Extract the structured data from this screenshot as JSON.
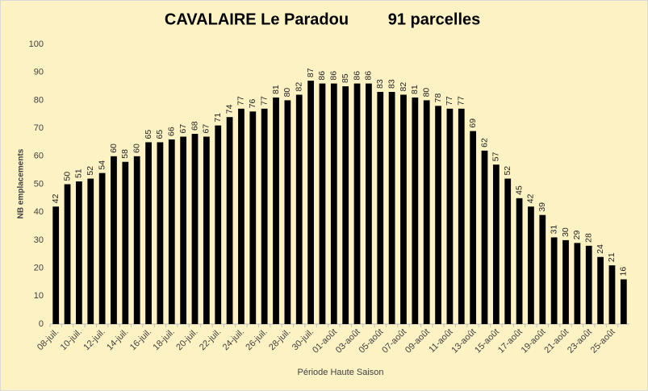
{
  "chart_data": {
    "type": "bar",
    "title": "CAVALAIRE Le Paradou",
    "subtitle": "91 parcelles",
    "x_label": "Période Haute Saison",
    "y_label": "NB emplacements",
    "categories": [
      "08-juil.",
      null,
      "10-juil.",
      null,
      "12-juil.",
      null,
      "14-juil.",
      null,
      "16-juil.",
      null,
      "18-juil.",
      null,
      "20-juil.",
      null,
      "22-juil.",
      null,
      "24-juil.",
      null,
      "26-juil.",
      null,
      "28-juil.",
      null,
      "30-juil.",
      null,
      "01-août",
      null,
      "03-août",
      null,
      "05-août",
      null,
      "07-août",
      null,
      "09-août",
      null,
      "11-août",
      null,
      "13-août",
      null,
      "15-août",
      null,
      "17-août",
      null,
      "19-août",
      null,
      "21-août",
      null,
      "23-août",
      null,
      "25-août",
      null
    ],
    "values": [
      42,
      50,
      51,
      52,
      54,
      60,
      58,
      60,
      65,
      65,
      66,
      67,
      68,
      67,
      71,
      74,
      77,
      76,
      77,
      81,
      80,
      82,
      87,
      86,
      86,
      85,
      86,
      86,
      83,
      83,
      82,
      81,
      80,
      78,
      77,
      77,
      69,
      62,
      57,
      52,
      45,
      42,
      39,
      31,
      30,
      29,
      28,
      24,
      21,
      16
    ],
    "color": "#000000",
    "ylim": [
      0,
      100
    ],
    "yticks": [
      0,
      10,
      20,
      30,
      40,
      50,
      60,
      70,
      80,
      90,
      100
    ],
    "grid": false,
    "data_labels": true
  }
}
